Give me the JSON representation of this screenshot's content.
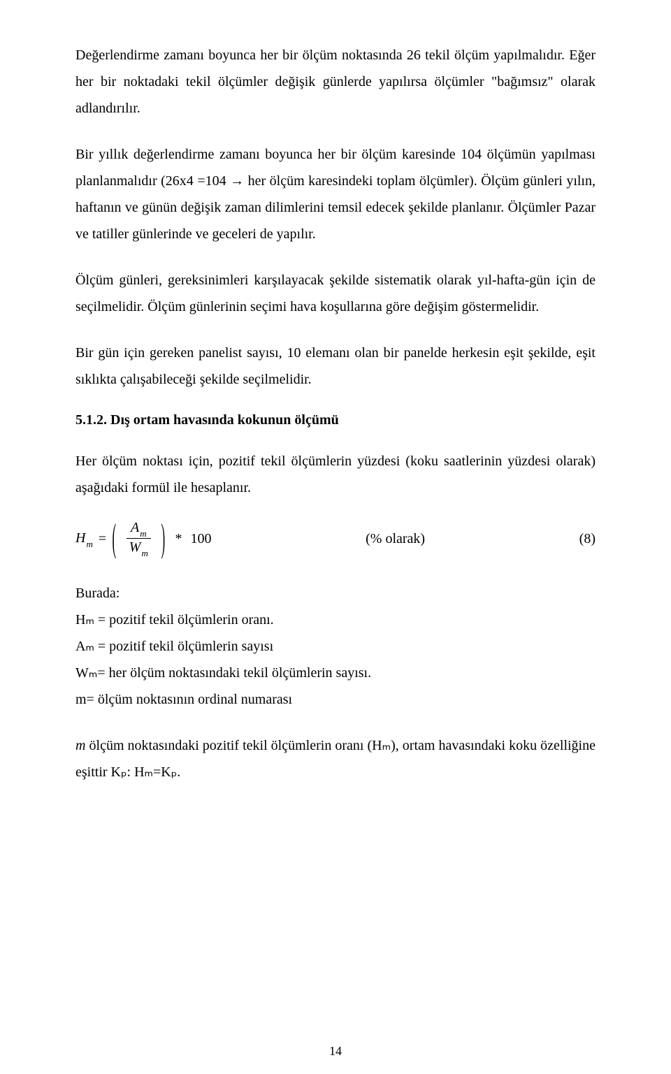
{
  "paragraphs": {
    "p1": "Değerlendirme zamanı boyunca her bir ölçüm noktasında 26 tekil ölçüm yapılmalıdır. Eğer her bir noktadaki tekil ölçümler değişik günlerde yapılırsa ölçümler \"bağımsız\" olarak adlandırılır.",
    "p2": "Bir yıllık değerlendirme zamanı boyunca her bir ölçüm karesinde 104 ölçümün yapılması planlanmalıdır (26x4 =104 → her ölçüm karesindeki toplam ölçümler). Ölçüm günleri yılın, haftanın ve günün değişik zaman dilimlerini temsil edecek şekilde planlanır. Ölçümler Pazar ve tatiller günlerinde ve geceleri de yapılır.",
    "p3": "Ölçüm günleri, gereksinimleri karşılayacak şekilde sistematik olarak yıl-hafta-gün için de seçilmelidir. Ölçüm günlerinin seçimi hava koşullarına göre değişim göstermelidir.",
    "p4": "Bir gün için gereken panelist sayısı, 10 elemanı olan bir panelde herkesin eşit şekilde, eşit sıklıkta çalışabileceği şekilde seçilmelidir.",
    "p5": "Her ölçüm noktası için, pozitif tekil ölçümlerin yüzdesi (koku saatlerinin yüzdesi olarak) aşağıdaki formül ile hesaplanır.",
    "p6_prefix": "m",
    "p6_rest": " ölçüm noktasındaki pozitif tekil ölçümlerin oranı (Hₘ), ortam havasındaki koku özelliğine eşittir Kₚ: Hₘ=Kₚ."
  },
  "heading": "5.1.2. Dış ortam havasında kokunun ölçümü",
  "formula": {
    "lhs_var": "H",
    "lhs_sub": "m",
    "num_var": "A",
    "num_sub": "m",
    "den_var": "W",
    "den_sub": "m",
    "multiplier": "100",
    "caption": "(% olarak)",
    "eqnum": "(8)"
  },
  "definitions": {
    "intro": "Burada:",
    "d1": "Hₘ = pozitif tekil ölçümlerin oranı.",
    "d2": "Aₘ = pozitif tekil ölçümlerin sayısı",
    "d3": "Wₘ= her ölçüm noktasındaki tekil ölçümlerin sayısı.",
    "d4": "m= ölçüm noktasının ordinal numarası"
  },
  "pagenum": "14"
}
